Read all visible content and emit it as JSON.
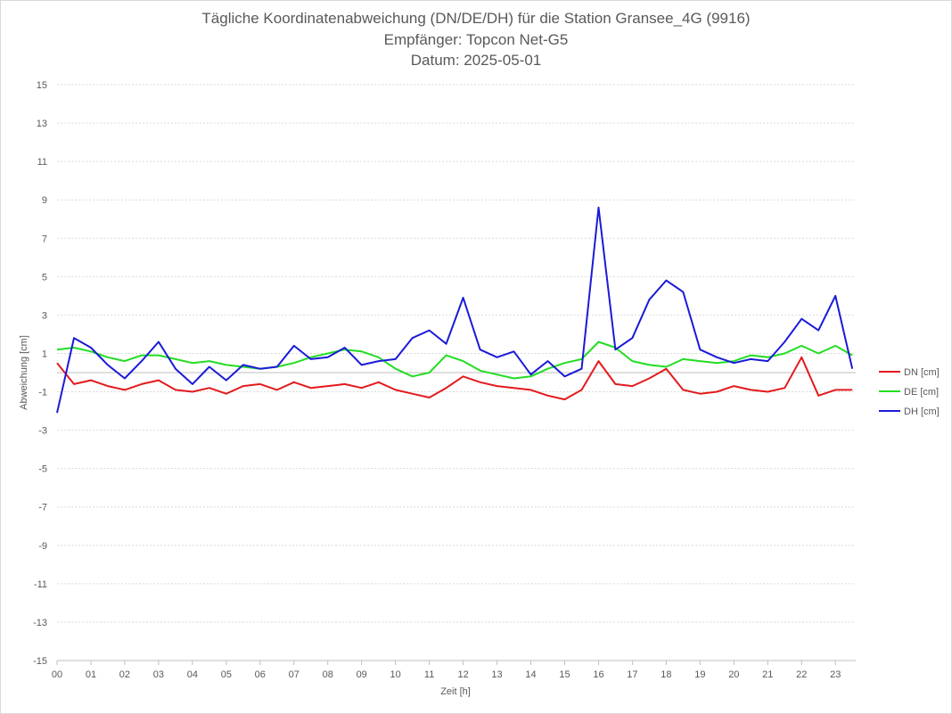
{
  "chart_data": {
    "type": "line",
    "title": "Tägliche Koordinatenabweichung (DN/DE/DH) für die Station Gransee_4G (9916)",
    "subtitle_1": "Empfänger: Topcon Net-G5",
    "subtitle_2": "Datum: 2025-05-01",
    "xlabel": "Zeit [h]",
    "ylabel": "Abweichung [cm]",
    "xlim": [
      0,
      23.6
    ],
    "ylim": [
      -15,
      15
    ],
    "x_ticks": [
      "00",
      "01",
      "02",
      "03",
      "04",
      "05",
      "06",
      "07",
      "08",
      "09",
      "10",
      "11",
      "12",
      "13",
      "14",
      "15",
      "16",
      "17",
      "18",
      "19",
      "20",
      "21",
      "22",
      "23"
    ],
    "y_ticks": [
      15,
      13,
      11,
      9,
      7,
      5,
      3,
      1,
      -1,
      -3,
      -5,
      -7,
      -9,
      -11,
      -13,
      -15
    ],
    "grid": "horizontal dashed",
    "legend_position": "right",
    "x": [
      0.0,
      0.5,
      1.0,
      1.5,
      2.0,
      2.5,
      3.0,
      3.5,
      4.0,
      4.5,
      5.0,
      5.5,
      6.0,
      6.5,
      7.0,
      7.5,
      8.0,
      8.5,
      9.0,
      9.5,
      10.0,
      10.5,
      11.0,
      11.5,
      12.0,
      12.5,
      13.0,
      13.5,
      14.0,
      14.5,
      15.0,
      15.5,
      16.0,
      16.5,
      17.0,
      17.5,
      18.0,
      18.5,
      19.0,
      19.5,
      20.0,
      20.5,
      21.0,
      21.5,
      22.0,
      22.5,
      23.0,
      23.5
    ],
    "series": [
      {
        "name": "DN [cm]",
        "color": "#e31a1c",
        "values": [
          0.5,
          -0.6,
          -0.4,
          -0.7,
          -0.9,
          -0.6,
          -0.4,
          -0.9,
          -1.0,
          -0.8,
          -1.1,
          -0.7,
          -0.6,
          -0.9,
          -0.5,
          -0.8,
          -0.7,
          -0.6,
          -0.8,
          -0.5,
          -0.9,
          -1.1,
          -1.3,
          -0.8,
          -0.2,
          -0.5,
          -0.7,
          -0.8,
          -0.9,
          -1.2,
          -1.4,
          -0.9,
          0.6,
          -0.6,
          -0.7,
          -0.3,
          0.2,
          -0.9,
          -1.1,
          -1.0,
          -0.7,
          -0.9,
          -1.0,
          -0.8,
          0.8,
          -1.2,
          -0.9,
          -0.9
        ]
      },
      {
        "name": "DE [cm]",
        "color": "#22dd22",
        "values": [
          1.2,
          1.3,
          1.1,
          0.8,
          0.6,
          0.9,
          0.9,
          0.7,
          0.5,
          0.6,
          0.4,
          0.3,
          0.2,
          0.3,
          0.5,
          0.8,
          1.0,
          1.2,
          1.1,
          0.8,
          0.2,
          -0.2,
          0.0,
          0.9,
          0.6,
          0.1,
          -0.1,
          -0.3,
          -0.2,
          0.2,
          0.5,
          0.7,
          1.6,
          1.3,
          0.6,
          0.4,
          0.3,
          0.7,
          0.6,
          0.5,
          0.6,
          0.9,
          0.8,
          1.0,
          1.4,
          1.0,
          1.4,
          0.9
        ]
      },
      {
        "name": "DH [cm]",
        "color": "#1a1ad9",
        "values": [
          -2.1,
          1.8,
          1.3,
          0.4,
          -0.3,
          0.6,
          1.6,
          0.2,
          -0.6,
          0.3,
          -0.4,
          0.4,
          0.2,
          0.3,
          1.4,
          0.7,
          0.8,
          1.3,
          0.4,
          0.6,
          0.7,
          1.8,
          2.2,
          1.5,
          3.9,
          1.2,
          0.8,
          1.1,
          -0.1,
          0.6,
          -0.2,
          0.2,
          8.6,
          1.2,
          1.8,
          3.8,
          4.8,
          4.2,
          1.2,
          0.8,
          0.5,
          0.7,
          0.6,
          1.6,
          2.8,
          2.2,
          4.0,
          0.2
        ]
      }
    ]
  }
}
